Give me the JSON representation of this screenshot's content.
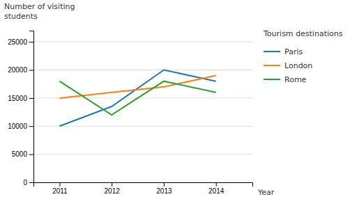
{
  "chart_data": {
    "type": "line",
    "xlabel": "Year",
    "ylabel": "Number of visiting\nstudents",
    "legend_title": "Tourism destinations",
    "x": [
      2011,
      2012,
      2013,
      2014
    ],
    "series": [
      {
        "name": "Paris",
        "values": [
          10000,
          13500,
          20000,
          18000
        ]
      },
      {
        "name": "London",
        "values": [
          15000,
          16000,
          17000,
          19000
        ]
      },
      {
        "name": "Rome",
        "values": [
          18000,
          12000,
          18000,
          16000
        ]
      }
    ],
    "xlim": [
      2010.5,
      2014.7
    ],
    "xticks": [
      2011,
      2012,
      2013,
      2014
    ],
    "ylim": [
      0,
      27000
    ],
    "yticks": [
      0,
      5000,
      10000,
      15000,
      20000,
      25000
    ],
    "grid": true,
    "legend": "right"
  }
}
